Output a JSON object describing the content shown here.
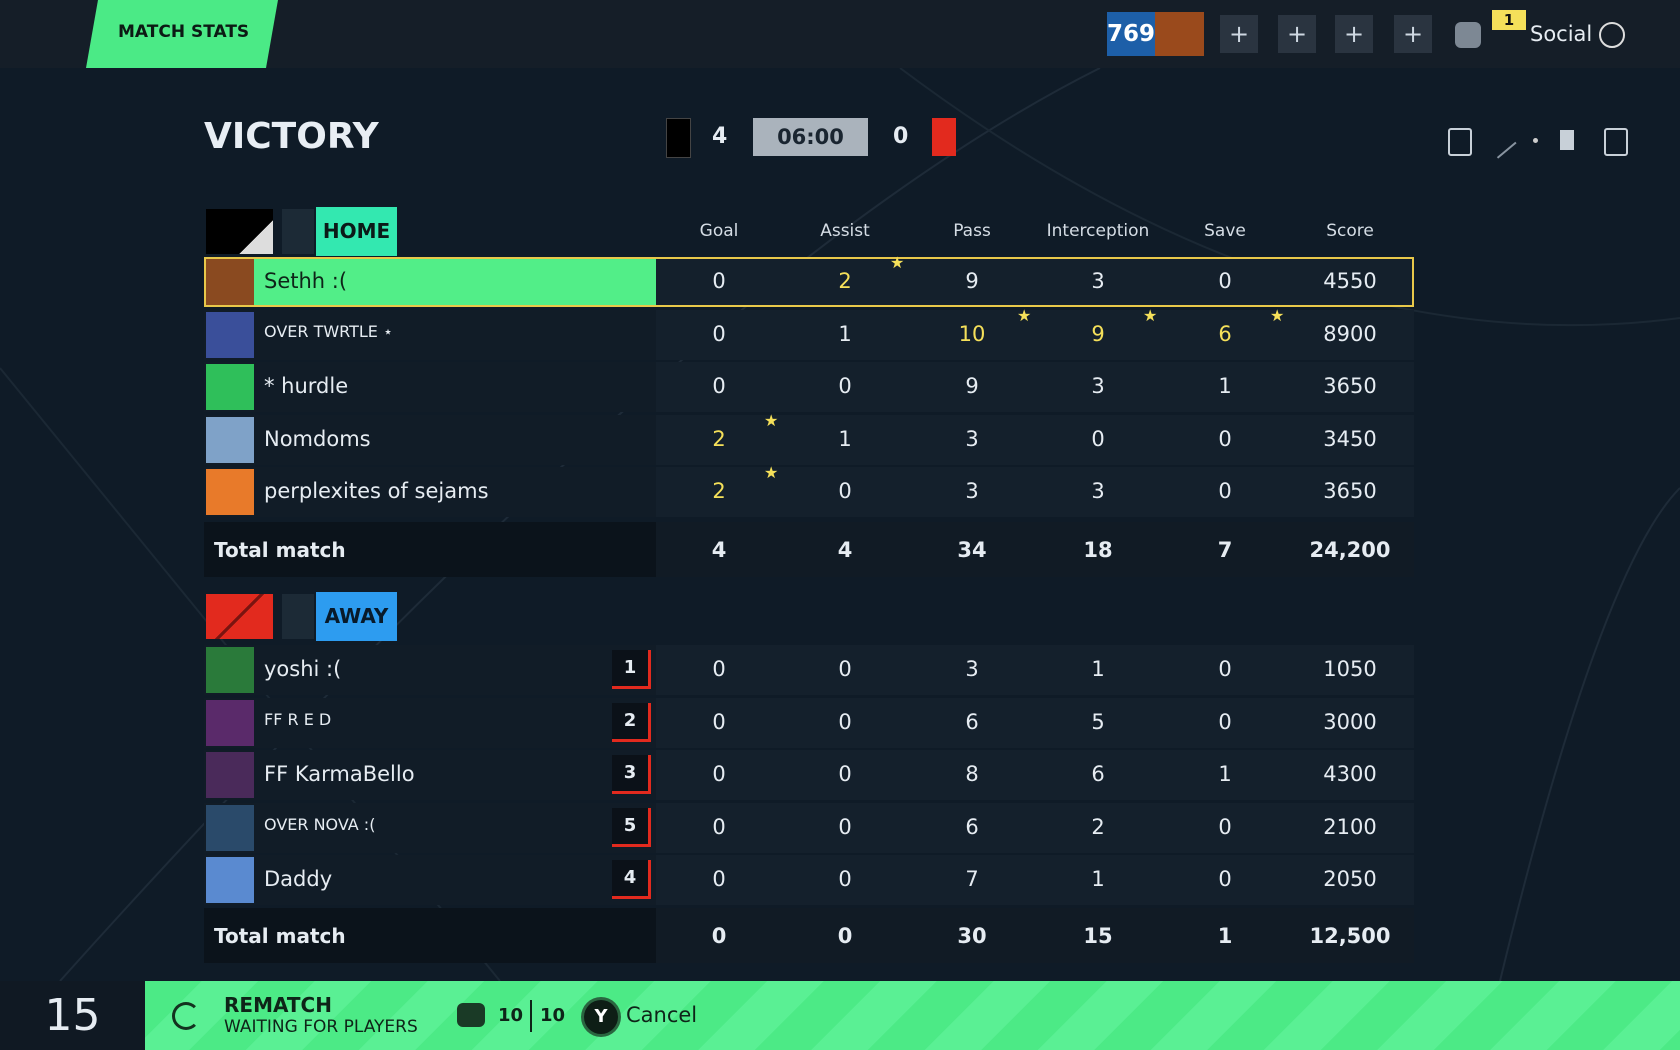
{
  "header": {
    "tab": "MATCH STATS",
    "rating": "769",
    "notification": "1",
    "social": "Social"
  },
  "result": {
    "title": "VICTORY",
    "home_score": "4",
    "clock": "06:00",
    "away_score": "0"
  },
  "columns": [
    "Goal",
    "Assist",
    "Pass",
    "Interception",
    "Save",
    "Score"
  ],
  "home": {
    "label": "HOME",
    "rows": [
      {
        "name": "Sethh :(",
        "stats": [
          "0",
          "2",
          "9",
          "3",
          "0",
          "4550"
        ],
        "best_columns": [
          1
        ]
      },
      {
        "name": "OVER TWRTLE ⋆",
        "stats": [
          "0",
          "1",
          "10",
          "9",
          "6",
          "8900"
        ],
        "best_columns": [
          2,
          3,
          4
        ]
      },
      {
        "name": "* hurdle",
        "stats": [
          "0",
          "0",
          "9",
          "3",
          "1",
          "3650"
        ],
        "best_columns": []
      },
      {
        "name": "Nomdoms",
        "stats": [
          "2",
          "1",
          "3",
          "0",
          "0",
          "3450"
        ],
        "best_columns": [
          0
        ]
      },
      {
        "name": "perplexites of sejams",
        "stats": [
          "2",
          "0",
          "3",
          "3",
          "0",
          "3650"
        ],
        "best_columns": [
          0
        ]
      }
    ],
    "total": {
      "label": "Total match",
      "stats": [
        "4",
        "4",
        "34",
        "18",
        "7",
        "24,200"
      ]
    }
  },
  "away": {
    "label": "AWAY",
    "rows": [
      {
        "name": "yoshi :(",
        "rank": "1",
        "stats": [
          "0",
          "0",
          "3",
          "1",
          "0",
          "1050"
        ]
      },
      {
        "name": "FF R E D",
        "rank": "2",
        "stats": [
          "0",
          "0",
          "6",
          "5",
          "0",
          "3000"
        ]
      },
      {
        "name": "FF KarmaBello",
        "rank": "3",
        "stats": [
          "0",
          "0",
          "8",
          "6",
          "1",
          "4300"
        ]
      },
      {
        "name": "OVER NOVA :(",
        "rank": "5",
        "stats": [
          "0",
          "0",
          "6",
          "2",
          "0",
          "2100"
        ]
      },
      {
        "name": "Daddy",
        "rank": "4",
        "stats": [
          "0",
          "0",
          "7",
          "1",
          "0",
          "2050"
        ]
      }
    ],
    "total": {
      "label": "Total match",
      "stats": [
        "0",
        "0",
        "30",
        "15",
        "1",
        "12,500"
      ]
    }
  },
  "footer": {
    "countdown": "15",
    "action": "REMATCH",
    "status": "WAITING FOR PLAYERS",
    "ready": "10",
    "capacity": "10",
    "button": "Y",
    "cancel": "Cancel"
  }
}
